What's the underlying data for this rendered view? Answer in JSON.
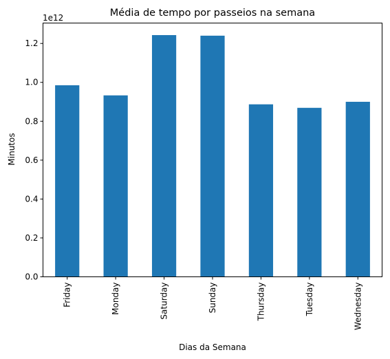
{
  "chart_data": {
    "type": "bar",
    "title": "Média de tempo por passeios na semana",
    "xlabel": "Dias da Semana",
    "ylabel": "Minutos",
    "offset_text": "1e12",
    "categories": [
      "Friday",
      "Monday",
      "Saturday",
      "Sunday",
      "Thursday",
      "Tuesday",
      "Wednesday"
    ],
    "values": [
      0.985,
      0.933,
      1.243,
      1.24,
      0.887,
      0.869,
      0.9
    ],
    "value_scale": 1000000000000.0,
    "ylim": [
      0,
      1.305
    ],
    "yticks": [
      0.0,
      0.2,
      0.4,
      0.6,
      0.8,
      1.0,
      1.2
    ],
    "ytick_labels": [
      "0.0",
      "0.2",
      "0.4",
      "0.6",
      "0.8",
      "1.0",
      "1.2"
    ],
    "bar_color": "#1f77b4",
    "grid": false,
    "legend": false
  }
}
